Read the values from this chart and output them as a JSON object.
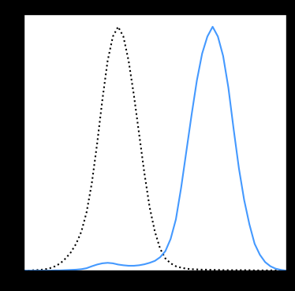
{
  "background_color": "#000000",
  "plot_bg_color": "#ffffff",
  "dotted_line_color": "#000000",
  "solid_line_color": "#4499ff",
  "dotted_x": [
    0.0,
    0.02,
    0.04,
    0.06,
    0.08,
    0.1,
    0.12,
    0.14,
    0.16,
    0.18,
    0.2,
    0.22,
    0.24,
    0.26,
    0.28,
    0.3,
    0.32,
    0.34,
    0.36,
    0.38,
    0.4,
    0.42,
    0.44,
    0.46,
    0.48,
    0.5,
    0.52,
    0.54,
    0.56,
    0.58,
    0.6,
    0.62,
    0.64,
    0.66,
    0.68,
    0.7,
    0.72,
    0.74,
    0.76,
    0.78,
    0.8,
    0.82,
    0.84,
    0.86,
    0.88,
    0.9,
    0.92,
    0.94,
    0.96,
    0.98,
    1.0
  ],
  "dotted_y": [
    0.0,
    0.0,
    0.002,
    0.003,
    0.005,
    0.01,
    0.018,
    0.03,
    0.05,
    0.075,
    0.11,
    0.16,
    0.24,
    0.36,
    0.52,
    0.7,
    0.86,
    0.96,
    1.0,
    0.96,
    0.86,
    0.72,
    0.56,
    0.4,
    0.26,
    0.16,
    0.09,
    0.05,
    0.03,
    0.018,
    0.012,
    0.008,
    0.006,
    0.005,
    0.004,
    0.004,
    0.003,
    0.003,
    0.002,
    0.002,
    0.002,
    0.002,
    0.002,
    0.002,
    0.001,
    0.001,
    0.001,
    0.001,
    0.001,
    0.001,
    0.0
  ],
  "solid_x": [
    0.0,
    0.02,
    0.04,
    0.06,
    0.08,
    0.1,
    0.12,
    0.14,
    0.16,
    0.18,
    0.2,
    0.22,
    0.24,
    0.26,
    0.28,
    0.3,
    0.32,
    0.34,
    0.36,
    0.38,
    0.4,
    0.42,
    0.44,
    0.46,
    0.48,
    0.5,
    0.52,
    0.54,
    0.56,
    0.58,
    0.6,
    0.62,
    0.64,
    0.66,
    0.68,
    0.7,
    0.72,
    0.74,
    0.76,
    0.78,
    0.8,
    0.82,
    0.84,
    0.86,
    0.88,
    0.9,
    0.92,
    0.94,
    0.96,
    0.98,
    1.0
  ],
  "solid_y": [
    0.0,
    0.0,
    0.0,
    0.0,
    0.0,
    0.0,
    0.001,
    0.001,
    0.002,
    0.003,
    0.004,
    0.006,
    0.01,
    0.018,
    0.025,
    0.03,
    0.032,
    0.03,
    0.025,
    0.022,
    0.02,
    0.02,
    0.022,
    0.026,
    0.032,
    0.04,
    0.055,
    0.08,
    0.13,
    0.21,
    0.34,
    0.49,
    0.64,
    0.78,
    0.89,
    0.96,
    1.0,
    0.96,
    0.88,
    0.75,
    0.58,
    0.42,
    0.29,
    0.19,
    0.11,
    0.065,
    0.035,
    0.018,
    0.008,
    0.003,
    0.0
  ],
  "xlim": [
    0.0,
    1.0
  ],
  "ylim": [
    0.0,
    1.05
  ],
  "figsize": [
    3.74,
    3.69
  ],
  "dpi": 100,
  "line_width": 1.5,
  "dotted_linewidth": 1.5
}
